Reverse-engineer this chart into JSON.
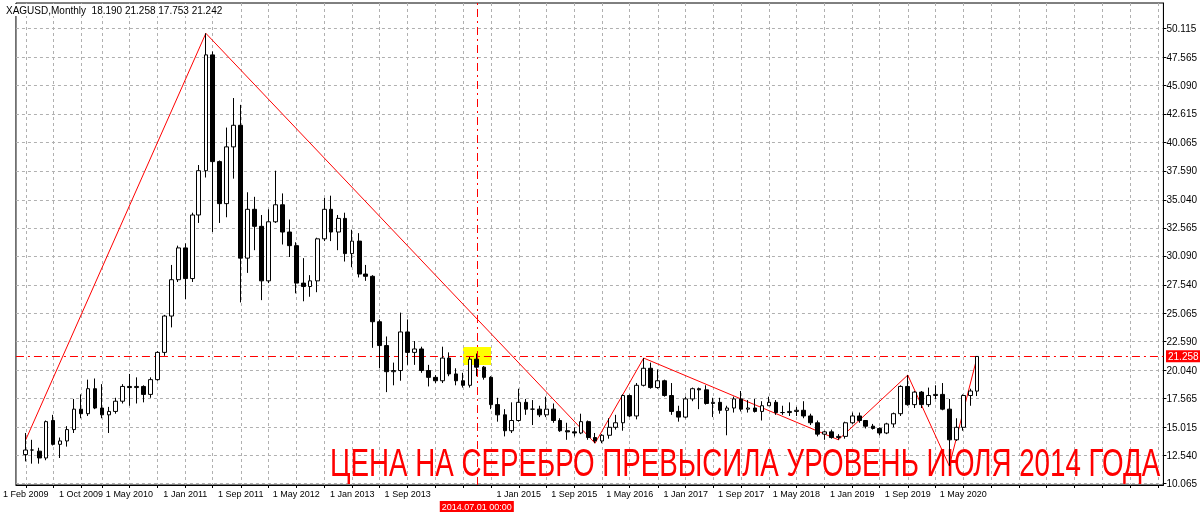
{
  "chart_data": {
    "type": "candlestick",
    "title": "XAGUSD,Monthly  18.190 21.258 17.753 21.242",
    "annotations": [
      "ЦЕНА НА СЕРЕБРО ПРЕВЫСИЛА УРОВЕНЬ ИЮЛЯ 2014 ГОДА"
    ],
    "color": "#000000",
    "x": [
      "2009-02",
      "2009-03",
      "2009-04",
      "2009-05",
      "2009-06",
      "2009-07",
      "2009-08",
      "2009-09",
      "2009-10",
      "2009-11",
      "2009-12",
      "2010-01",
      "2010-02",
      "2010-03",
      "2010-04",
      "2010-05",
      "2010-06",
      "2010-07",
      "2010-08",
      "2010-09",
      "2010-10",
      "2010-11",
      "2010-12",
      "2011-01",
      "2011-02",
      "2011-03",
      "2011-04",
      "2011-05",
      "2011-06",
      "2011-07",
      "2011-08",
      "2011-09",
      "2011-10",
      "2011-11",
      "2011-12",
      "2012-01",
      "2012-02",
      "2012-03",
      "2012-04",
      "2012-05",
      "2012-06",
      "2012-07",
      "2012-08",
      "2012-09",
      "2012-10",
      "2012-11",
      "2012-12",
      "2013-01",
      "2013-02",
      "2013-03",
      "2013-04",
      "2013-05",
      "2013-06",
      "2013-07",
      "2013-08",
      "2013-09",
      "2013-10",
      "2013-11",
      "2013-12",
      "2014-01",
      "2014-02",
      "2014-03",
      "2014-04",
      "2014-05",
      "2014-06",
      "2014-07",
      "2014-08",
      "2014-09",
      "2014-10",
      "2014-11",
      "2014-12",
      "2015-01",
      "2015-02",
      "2015-03",
      "2015-04",
      "2015-05",
      "2015-06",
      "2015-07",
      "2015-08",
      "2015-09",
      "2015-10",
      "2015-11",
      "2015-12",
      "2016-01",
      "2016-02",
      "2016-03",
      "2016-04",
      "2016-05",
      "2016-06",
      "2016-07",
      "2016-08",
      "2016-09",
      "2016-10",
      "2016-11",
      "2016-12",
      "2017-01",
      "2017-02",
      "2017-03",
      "2017-04",
      "2017-05",
      "2017-06",
      "2017-07",
      "2017-08",
      "2017-09",
      "2017-10",
      "2017-11",
      "2017-12",
      "2018-01",
      "2018-02",
      "2018-03",
      "2018-04",
      "2018-05",
      "2018-06",
      "2018-07",
      "2018-08",
      "2018-09",
      "2018-10",
      "2018-11",
      "2018-12",
      "2019-01",
      "2019-02",
      "2019-03",
      "2019-04",
      "2019-05",
      "2019-06",
      "2019-07",
      "2019-08",
      "2019-09",
      "2019-10",
      "2019-11",
      "2019-12",
      "2020-01",
      "2020-02",
      "2020-03",
      "2020-04",
      "2020-05",
      "2020-06",
      "2020-07"
    ],
    "ohlc": [
      [
        12.6,
        14.5,
        12.0,
        13.0
      ],
      [
        13.0,
        13.9,
        11.8,
        13.0
      ],
      [
        12.9,
        13.2,
        11.8,
        12.3
      ],
      [
        12.3,
        15.6,
        12.1,
        15.5
      ],
      [
        15.6,
        16.1,
        13.4,
        13.5
      ],
      [
        13.5,
        14.1,
        12.3,
        13.8
      ],
      [
        13.8,
        15.1,
        13.3,
        14.8
      ],
      [
        14.8,
        17.5,
        14.5,
        16.6
      ],
      [
        16.6,
        17.9,
        15.8,
        16.2
      ],
      [
        16.2,
        19.2,
        16.0,
        18.4
      ],
      [
        18.4,
        19.3,
        16.6,
        16.7
      ],
      [
        16.7,
        18.8,
        15.8,
        16.1
      ],
      [
        16.1,
        16.8,
        14.5,
        16.4
      ],
      [
        16.4,
        17.6,
        16.2,
        17.3
      ],
      [
        17.3,
        18.8,
        17.1,
        18.6
      ],
      [
        18.6,
        19.7,
        16.9,
        18.5
      ],
      [
        18.5,
        19.4,
        17.1,
        18.6
      ],
      [
        18.6,
        18.7,
        17.2,
        17.9
      ],
      [
        17.9,
        19.4,
        17.6,
        19.2
      ],
      [
        19.2,
        21.7,
        19.1,
        21.6
      ],
      [
        21.6,
        24.9,
        21.3,
        24.8
      ],
      [
        24.8,
        29.3,
        23.8,
        28.0
      ],
      [
        28.0,
        31.0,
        27.8,
        30.8
      ],
      [
        30.8,
        31.2,
        26.3,
        28.1
      ],
      [
        28.1,
        33.9,
        27.8,
        33.7
      ],
      [
        33.7,
        38.1,
        33.0,
        37.6
      ],
      [
        37.6,
        49.7,
        37.0,
        47.8
      ],
      [
        47.8,
        48.1,
        32.2,
        38.4
      ],
      [
        38.4,
        38.5,
        33.0,
        34.7
      ],
      [
        34.7,
        41.4,
        33.5,
        39.7
      ],
      [
        39.7,
        44.0,
        36.9,
        41.6
      ],
      [
        41.6,
        43.4,
        26.0,
        29.9
      ],
      [
        29.9,
        35.7,
        28.6,
        34.2
      ],
      [
        34.2,
        35.3,
        30.6,
        32.7
      ],
      [
        32.7,
        33.7,
        26.2,
        27.9
      ],
      [
        27.9,
        34.2,
        27.7,
        33.1
      ],
      [
        33.1,
        37.6,
        33.0,
        34.6
      ],
      [
        34.6,
        35.6,
        31.1,
        32.2
      ],
      [
        32.2,
        33.3,
        30.0,
        31.0
      ],
      [
        31.0,
        31.3,
        26.8,
        27.7
      ],
      [
        27.7,
        29.9,
        26.1,
        27.4
      ],
      [
        27.4,
        28.4,
        26.5,
        27.9
      ],
      [
        27.9,
        31.7,
        26.9,
        31.6
      ],
      [
        31.6,
        35.2,
        31.4,
        34.2
      ],
      [
        34.2,
        35.4,
        31.4,
        32.2
      ],
      [
        32.2,
        33.7,
        30.6,
        33.4
      ],
      [
        33.4,
        33.9,
        29.6,
        30.3
      ],
      [
        30.3,
        32.4,
        29.1,
        31.4
      ],
      [
        31.4,
        32.1,
        28.2,
        28.5
      ],
      [
        28.5,
        29.3,
        27.9,
        28.3
      ],
      [
        28.3,
        28.4,
        22.0,
        24.3
      ],
      [
        24.3,
        24.5,
        20.2,
        22.2
      ],
      [
        22.2,
        23.0,
        18.1,
        19.9
      ],
      [
        19.9,
        20.7,
        18.7,
        20.0
      ],
      [
        20.0,
        25.1,
        19.1,
        23.4
      ],
      [
        23.4,
        24.5,
        20.5,
        21.6
      ],
      [
        21.6,
        22.6,
        20.5,
        21.9
      ],
      [
        21.9,
        22.1,
        19.8,
        20.0
      ],
      [
        20.0,
        20.5,
        18.6,
        19.4
      ],
      [
        19.4,
        19.6,
        18.9,
        19.1
      ],
      [
        19.1,
        22.1,
        18.9,
        21.1
      ],
      [
        21.1,
        21.6,
        19.5,
        19.7
      ],
      [
        19.7,
        20.2,
        18.7,
        19.1
      ],
      [
        19.1,
        19.8,
        18.5,
        18.7
      ],
      [
        18.7,
        21.2,
        18.5,
        21.0
      ],
      [
        21.0,
        21.5,
        19.5,
        20.3
      ],
      [
        20.3,
        20.4,
        19.2,
        19.4
      ],
      [
        19.4,
        19.5,
        16.6,
        17.0
      ],
      [
        17.0,
        17.6,
        15.5,
        16.1
      ],
      [
        16.1,
        16.6,
        14.2,
        14.7
      ],
      [
        14.7,
        17.2,
        14.5,
        15.6
      ],
      [
        15.6,
        18.4,
        15.5,
        17.2
      ],
      [
        17.2,
        17.5,
        16.1,
        16.6
      ],
      [
        16.6,
        17.4,
        15.2,
        16.6
      ],
      [
        16.6,
        16.9,
        15.9,
        16.1
      ],
      [
        16.1,
        17.7,
        15.9,
        16.6
      ],
      [
        16.6,
        17.1,
        15.4,
        15.6
      ],
      [
        15.6,
        15.8,
        14.6,
        14.7
      ],
      [
        14.7,
        15.4,
        13.9,
        14.6
      ],
      [
        14.6,
        15.0,
        14.2,
        14.5
      ],
      [
        14.5,
        16.2,
        14.4,
        15.5
      ],
      [
        15.5,
        15.6,
        13.9,
        14.1
      ],
      [
        14.1,
        14.5,
        13.6,
        13.8
      ],
      [
        13.8,
        14.4,
        13.6,
        14.3
      ],
      [
        14.3,
        15.8,
        14.0,
        15.0
      ],
      [
        15.0,
        16.1,
        14.8,
        15.4
      ],
      [
        15.4,
        17.9,
        14.7,
        17.8
      ],
      [
        17.8,
        17.9,
        15.9,
        16.0
      ],
      [
        16.0,
        18.9,
        15.7,
        18.7
      ],
      [
        18.7,
        21.1,
        18.6,
        20.2
      ],
      [
        20.2,
        20.7,
        18.4,
        18.5
      ],
      [
        18.5,
        20.1,
        18.4,
        19.1
      ],
      [
        19.1,
        19.2,
        17.7,
        17.8
      ],
      [
        17.8,
        18.9,
        16.1,
        16.4
      ],
      [
        16.4,
        16.9,
        15.5,
        15.9
      ],
      [
        15.9,
        17.7,
        15.8,
        17.5
      ],
      [
        17.5,
        18.5,
        17.3,
        18.4
      ],
      [
        18.4,
        18.5,
        16.6,
        18.3
      ],
      [
        18.3,
        18.7,
        17.0,
        17.1
      ],
      [
        17.1,
        17.6,
        15.9,
        17.2
      ],
      [
        17.2,
        17.6,
        16.2,
        16.5
      ],
      [
        16.5,
        16.9,
        14.3,
        16.7
      ],
      [
        16.7,
        17.7,
        16.3,
        17.5
      ],
      [
        17.5,
        18.2,
        16.4,
        16.6
      ],
      [
        16.6,
        17.4,
        16.3,
        16.7
      ],
      [
        16.7,
        17.5,
        16.3,
        16.4
      ],
      [
        16.4,
        17.3,
        15.6,
        16.9
      ],
      [
        16.9,
        17.7,
        16.9,
        17.2
      ],
      [
        17.2,
        17.4,
        16.1,
        16.3
      ],
      [
        16.3,
        16.9,
        16.1,
        16.3
      ],
      [
        16.3,
        17.2,
        16.0,
        16.4
      ],
      [
        16.4,
        16.8,
        16.0,
        16.5
      ],
      [
        16.5,
        17.3,
        15.8,
        16.0
      ],
      [
        16.0,
        16.2,
        15.2,
        15.4
      ],
      [
        15.4,
        15.6,
        14.2,
        14.4
      ],
      [
        14.4,
        14.7,
        13.9,
        14.6
      ],
      [
        14.6,
        14.8,
        14.0,
        14.1
      ],
      [
        14.1,
        14.4,
        13.9,
        14.2
      ],
      [
        14.2,
        15.5,
        14.0,
        15.4
      ],
      [
        15.4,
        16.3,
        15.3,
        16.0
      ],
      [
        16.0,
        16.3,
        15.4,
        15.6
      ],
      [
        15.6,
        15.6,
        14.9,
        15.1
      ],
      [
        15.1,
        15.3,
        14.8,
        14.9
      ],
      [
        14.9,
        15.0,
        14.3,
        14.5
      ],
      [
        14.5,
        15.4,
        14.4,
        15.3
      ],
      [
        15.3,
        16.3,
        15.0,
        16.2
      ],
      [
        16.2,
        18.7,
        16.0,
        18.6
      ],
      [
        18.6,
        19.6,
        16.9,
        17.0
      ],
      [
        17.0,
        18.2,
        16.7,
        18.1
      ],
      [
        18.1,
        18.2,
        16.7,
        17.0
      ],
      [
        17.0,
        18.5,
        16.8,
        17.8
      ],
      [
        17.8,
        18.7,
        17.5,
        17.9
      ],
      [
        17.9,
        18.9,
        16.5,
        16.6
      ],
      [
        16.6,
        17.5,
        11.6,
        13.9
      ],
      [
        13.9,
        15.8,
        13.8,
        15.0
      ],
      [
        15.0,
        17.9,
        14.7,
        17.8
      ],
      [
        17.8,
        18.4,
        16.9,
        18.2
      ],
      [
        18.19,
        21.258,
        17.753,
        21.242
      ]
    ],
    "series": [
      {
        "type": "line",
        "color": "#ff0000",
        "x": [
          "2009-02",
          "2011-04",
          "2015-12",
          "2016-07",
          "2018-11",
          "2019-09",
          "2020-03",
          "2020-07"
        ],
        "values": [
          13.9,
          49.7,
          13.6,
          21.1,
          13.9,
          19.6,
          11.6,
          21.2
        ]
      }
    ],
    "marker": "none",
    "xlim": [
      "2008-12-20",
      "2022-09-25"
    ],
    "xticks": [
      {
        "value": "2009-02",
        "label": "1 Feb 2009"
      },
      {
        "value": "2009-06",
        "label": null
      },
      {
        "value": "2009-10",
        "label": "1 Oct 2009"
      },
      {
        "value": "2010-01",
        "label": null
      },
      {
        "value": "2010-05",
        "label": "1 May 2010"
      },
      {
        "value": "2010-09",
        "label": null
      },
      {
        "value": "2011-01",
        "label": "1 Jan 2011"
      },
      {
        "value": "2011-05",
        "label": null
      },
      {
        "value": "2011-09",
        "label": "1 Sep 2011"
      },
      {
        "value": "2012-01",
        "label": null
      },
      {
        "value": "2012-05",
        "label": "1 May 2012"
      },
      {
        "value": "2012-09",
        "label": null
      },
      {
        "value": "2013-01",
        "label": "1 Jan 2013"
      },
      {
        "value": "2013-05",
        "label": null
      },
      {
        "value": "2013-09",
        "label": "1 Sep 2013"
      },
      {
        "value": "2014-01",
        "label": null
      },
      {
        "value": "2014-05",
        "label": null
      },
      {
        "value": "2014-09",
        "label": null
      },
      {
        "value": "2015-01",
        "label": "1 Jan 2015"
      },
      {
        "value": "2015-05",
        "label": null
      },
      {
        "value": "2015-09",
        "label": "1 Sep 2015"
      },
      {
        "value": "2016-01",
        "label": null
      },
      {
        "value": "2016-05",
        "label": "1 May 2016"
      },
      {
        "value": "2016-09",
        "label": null
      },
      {
        "value": "2017-01",
        "label": "1 Jan 2017"
      },
      {
        "value": "2017-05",
        "label": null
      },
      {
        "value": "2017-09",
        "label": "1 Sep 2017"
      },
      {
        "value": "2018-01",
        "label": null
      },
      {
        "value": "2018-05",
        "label": "1 May 2018"
      },
      {
        "value": "2018-09",
        "label": null
      },
      {
        "value": "2019-01",
        "label": "1 Jan 2019"
      },
      {
        "value": "2019-05",
        "label": null
      },
      {
        "value": "2019-09",
        "label": "1 Sep 2019"
      },
      {
        "value": "2020-01",
        "label": null
      },
      {
        "value": "2020-05",
        "label": "1 May 2020"
      },
      {
        "value": "2020-09",
        "label": null
      },
      {
        "value": "2021-01",
        "label": null
      },
      {
        "value": "2021-05",
        "label": null
      },
      {
        "value": "2021-09",
        "label": null
      },
      {
        "value": "2022-01",
        "label": null
      },
      {
        "value": "2022-05",
        "label": null
      },
      {
        "value": "2022-09",
        "label": null
      }
    ],
    "ylim": [
      9.92,
      52.37
    ],
    "yticks": [
      10.065,
      {
        "value": 12.54,
        "label": "12.540"
      },
      15.015,
      17.565,
      {
        "value": 20.04,
        "label": "20.040"
      },
      {
        "value": 22.59,
        "label": "22.590"
      },
      25.065,
      {
        "value": 27.54,
        "label": "27.540"
      },
      {
        "value": 30.09,
        "label": "30.090"
      },
      32.565,
      {
        "value": 35.04,
        "label": "35.040"
      },
      {
        "value": 37.59,
        "label": "37.590"
      },
      40.065,
      42.615,
      {
        "value": 45.09,
        "label": "45.090"
      },
      47.565,
      50.115
    ],
    "grid": true,
    "ref_lines": [
      {
        "axis": "x",
        "value": "2014-07-01",
        "label": "2014.07.01 00:00",
        "color": "#ff0000",
        "line_style": "dashed"
      },
      {
        "axis": "y",
        "value": 21.258,
        "label": "21.258",
        "color": "#ff0000",
        "line_style": "dashed"
      }
    ]
  }
}
